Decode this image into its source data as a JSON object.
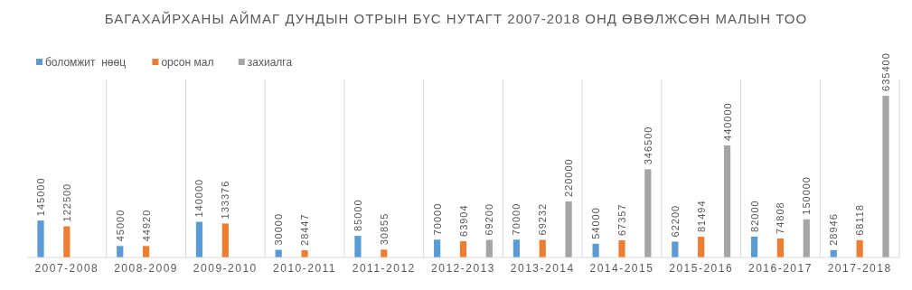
{
  "chart_data": {
    "type": "bar",
    "title": "БАГАХАЙРХАНЫ АЙМАГ ДУНДЫН ОТРЫН БҮС НУТАГТ 2007-2018 ОНД ӨВӨЛЖСӨН МАЛЫН ТОО",
    "categories": [
      "2007-2008",
      "2008-2009",
      "2009-2010",
      "2010-2011",
      "2011-2012",
      "2012-2013",
      "2013-2014",
      "2014-2015",
      "2015-2016",
      "2016-2017",
      "2017-2018"
    ],
    "series": [
      {
        "name": "боломжит  нөөц",
        "color": "#5b9bd5",
        "values": [
          145000,
          45000,
          140000,
          30000,
          85000,
          70000,
          70000,
          54000,
          62200,
          82000,
          28946
        ]
      },
      {
        "name": "орсон мал",
        "color": "#ed7d31",
        "values": [
          122500,
          44920,
          133376,
          28447,
          30855,
          63904,
          69232,
          67357,
          81494,
          74808,
          68118
        ]
      },
      {
        "name": "захиалга",
        "color": "#a5a5a5",
        "values": [
          null,
          null,
          null,
          null,
          null,
          69200,
          220000,
          346500,
          440000,
          150000,
          635400
        ]
      }
    ],
    "data_labels": true,
    "grid": "x",
    "legend": "top left"
  }
}
